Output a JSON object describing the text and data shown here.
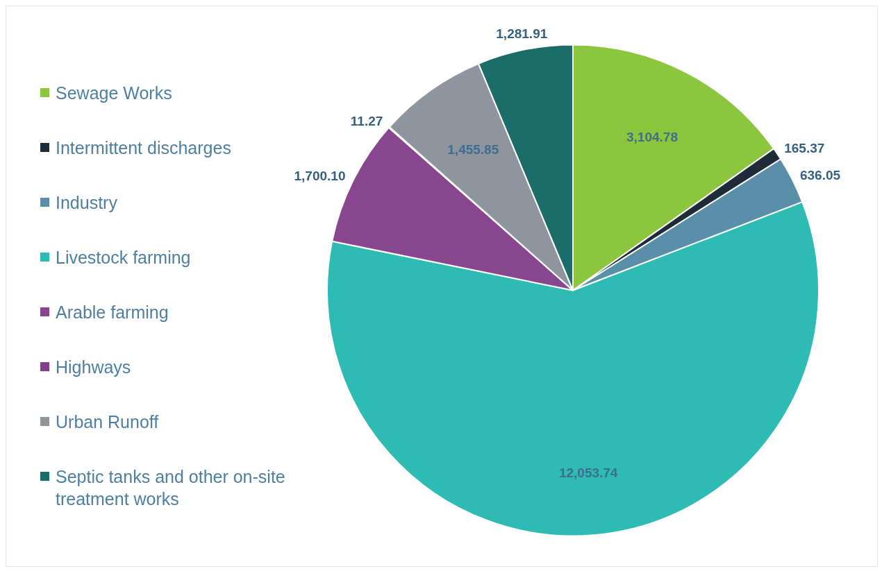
{
  "chart_data": {
    "type": "pie",
    "categories": [
      "Sewage Works",
      "Intermittent discharges",
      "Industry",
      "Livestock farming",
      "Arable farming",
      "Highways",
      "Urban Runoff",
      "Septic tanks and other on-site treatment works"
    ],
    "values": [
      3104.78,
      165.37,
      636.05,
      12053.74,
      1700.1,
      11.27,
      1455.85,
      1281.91
    ],
    "colors": [
      "#8cc63f",
      "#1e2b38",
      "#5a8fa9",
      "#2dbbb4",
      "#87468e",
      "#7f3f8c",
      "#8f959e",
      "#1b6d69"
    ],
    "value_labels": [
      "3,104.78",
      "165.37",
      "636.05",
      "12,053.74",
      "1,700.10",
      "11.27",
      "1,455.85",
      "1,281.91"
    ],
    "legend": "left"
  }
}
